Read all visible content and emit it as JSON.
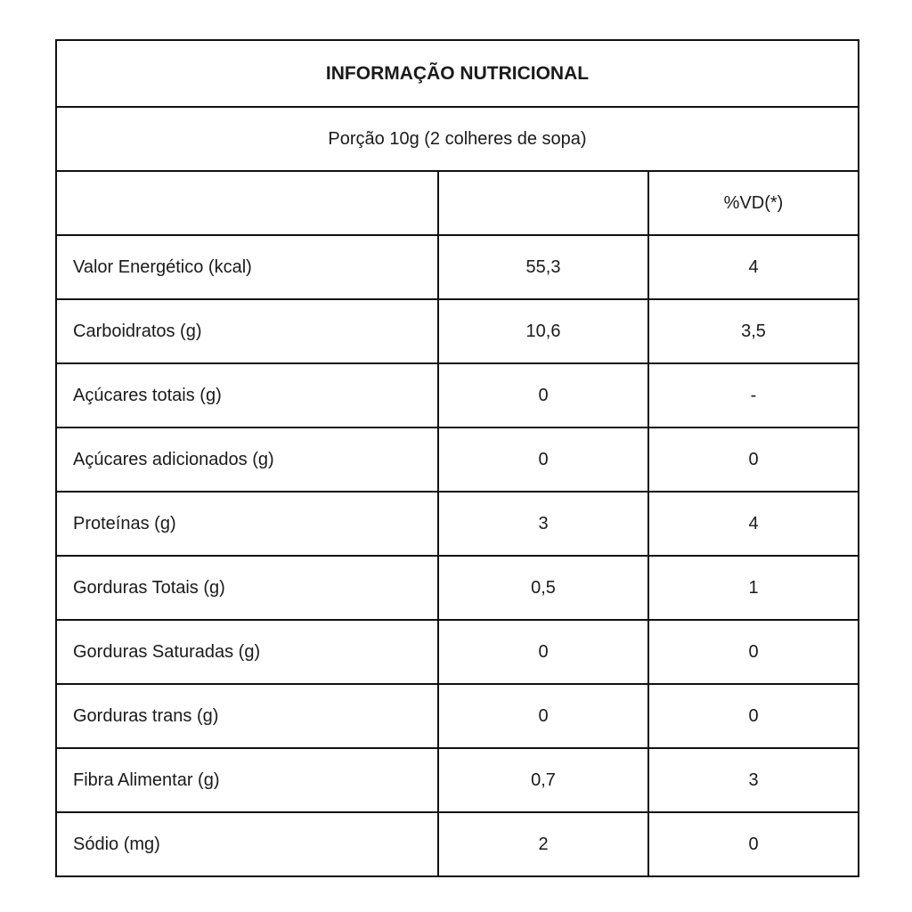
{
  "title": "INFORMAÇÃO NUTRICIONAL",
  "portion": "Porção 10g (2 colheres de sopa)",
  "header": {
    "label": "",
    "amount": "",
    "dv": "%VD(*)"
  },
  "rows": [
    {
      "label": "Valor Energético (kcal)",
      "amount": "55,3",
      "dv": "4"
    },
    {
      "label": "Carboidratos (g)",
      "amount": "10,6",
      "dv": "3,5"
    },
    {
      "label": "Açúcares totais (g)",
      "amount": "0",
      "dv": "-"
    },
    {
      "label": "Açúcares adicionados (g)",
      "amount": "0",
      "dv": "0"
    },
    {
      "label": "Proteínas (g)",
      "amount": "3",
      "dv": "4"
    },
    {
      "label": "Gorduras Totais (g)",
      "amount": "0,5",
      "dv": "1"
    },
    {
      "label": "Gorduras Saturadas (g)",
      "amount": "0",
      "dv": "0"
    },
    {
      "label": "Gorduras trans (g)",
      "amount": "0",
      "dv": "0"
    },
    {
      "label": "Fibra Alimentar (g)",
      "amount": "0,7",
      "dv": "3"
    },
    {
      "label": "Sódio (mg)",
      "amount": "2",
      "dv": "0"
    }
  ]
}
